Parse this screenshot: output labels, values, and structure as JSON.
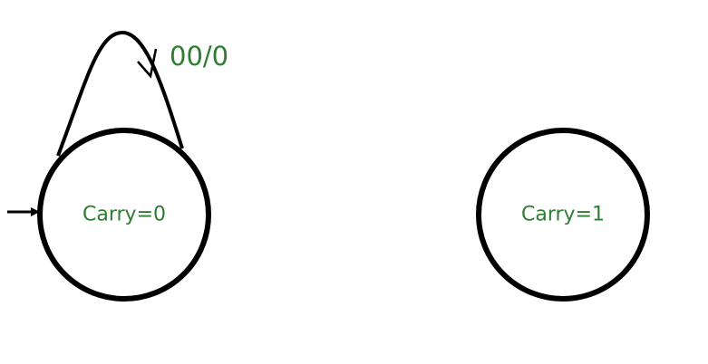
{
  "colors": {
    "stroke": "#000000",
    "label": "#2e7d32",
    "background": "#ffffff"
  },
  "states": [
    {
      "id": "carry0",
      "label": "Carry=0",
      "initial": true
    },
    {
      "id": "carry1",
      "label": "Carry=1",
      "initial": false
    }
  ],
  "transitions": [
    {
      "from": "carry0",
      "to": "carry0",
      "label": "00/0"
    }
  ]
}
